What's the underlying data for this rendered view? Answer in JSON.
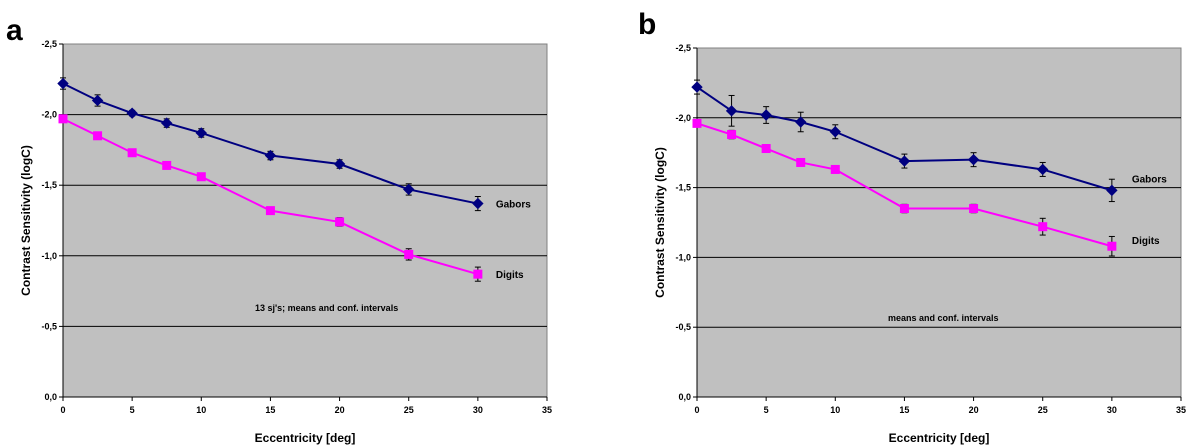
{
  "colors": {
    "plot_bg": "#c0c0c0",
    "gabors": "#000080",
    "digits": "#ff00ff",
    "gridline": "#000000",
    "errorbar": "#000000"
  },
  "chart_data": [
    {
      "panel": "a",
      "type": "line",
      "xlabel": "Eccentricity [deg]",
      "ylabel": "Contrast Sensitivity (logC)",
      "xlim": [
        0,
        35
      ],
      "ylim": [
        0,
        -2.5
      ],
      "y_axis_reversed": true,
      "grid": "horizontal",
      "x_ticks": [
        "0",
        "5",
        "10",
        "15",
        "20",
        "25",
        "30",
        "35"
      ],
      "y_ticks": [
        "0,0",
        "-0,5",
        "-1,0",
        "-1,5",
        "-2,0",
        "-2,5"
      ],
      "annotation": "13 sj's; means and conf. intervals",
      "series": [
        {
          "name": "Gabors",
          "marker": "diamond",
          "x": [
            0,
            2.5,
            5,
            7.5,
            10,
            15,
            20,
            25,
            30
          ],
          "y": [
            -2.22,
            -2.1,
            -2.01,
            -1.94,
            -1.87,
            -1.71,
            -1.65,
            -1.47,
            -1.37
          ],
          "err": [
            0.04,
            0.04,
            0.02,
            0.03,
            0.03,
            0.03,
            0.03,
            0.04,
            0.05
          ]
        },
        {
          "name": "Digits",
          "marker": "square",
          "x": [
            0,
            2.5,
            5,
            7.5,
            10,
            15,
            20,
            25,
            30
          ],
          "y": [
            -1.97,
            -1.85,
            -1.73,
            -1.64,
            -1.56,
            -1.32,
            -1.24,
            -1.01,
            -0.87
          ],
          "err": [
            0.02,
            0.02,
            0.02,
            0.02,
            0.02,
            0.02,
            0.03,
            0.04,
            0.05
          ]
        }
      ]
    },
    {
      "panel": "b",
      "type": "line",
      "xlabel": "Eccentricity [deg]",
      "ylabel": "Contrast Sensitivity (logC)",
      "xlim": [
        0,
        35
      ],
      "ylim": [
        0,
        -2.5
      ],
      "y_axis_reversed": true,
      "grid": "horizontal",
      "x_ticks": [
        "0",
        "5",
        "10",
        "15",
        "20",
        "25",
        "30",
        "35"
      ],
      "y_ticks": [
        "0,0",
        "-0,5",
        "-1,0",
        "-1,5",
        "-2,0",
        "-2,5"
      ],
      "annotation": "means and conf. intervals",
      "series": [
        {
          "name": "Gabors",
          "marker": "diamond",
          "x": [
            0,
            2.5,
            5,
            7.5,
            10,
            15,
            20,
            25,
            30
          ],
          "y": [
            -2.22,
            -2.05,
            -2.02,
            -1.97,
            -1.9,
            -1.69,
            -1.7,
            -1.63,
            -1.48
          ],
          "err": [
            0.05,
            0.11,
            0.06,
            0.07,
            0.05,
            0.05,
            0.05,
            0.05,
            0.08
          ]
        },
        {
          "name": "Digits",
          "marker": "square",
          "x": [
            0,
            2.5,
            5,
            7.5,
            10,
            15,
            20,
            25,
            30
          ],
          "y": [
            -1.96,
            -1.88,
            -1.78,
            -1.68,
            -1.63,
            -1.35,
            -1.35,
            -1.22,
            -1.08
          ],
          "err": [
            0.02,
            0.03,
            0.02,
            0.02,
            0.02,
            0.03,
            0.03,
            0.06,
            0.07
          ]
        }
      ]
    }
  ]
}
